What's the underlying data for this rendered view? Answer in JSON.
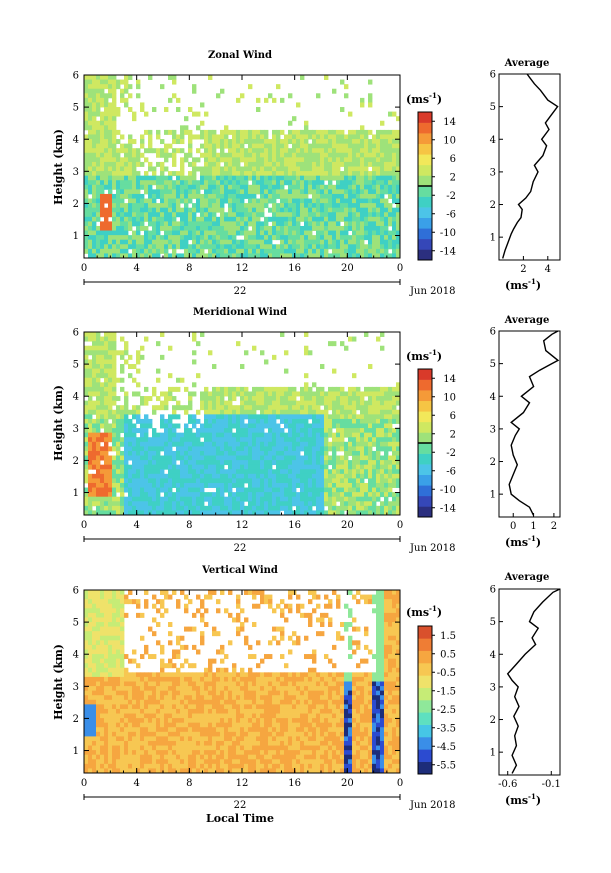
{
  "panels": [
    {
      "key": "zonal",
      "title": "Zonal Wind",
      "unit": "(ms",
      "unit_exp": "-1",
      "colorbar_ticks": [
        "14",
        "10",
        "6",
        "2",
        "-2",
        "-6",
        "-10",
        "-14"
      ],
      "colorbar_range": [
        -16,
        16
      ],
      "palette": "diverging",
      "time_labels": [
        "0",
        "4",
        "8",
        "12",
        "16",
        "20",
        "0"
      ],
      "date_day": "22",
      "date_month": "Jun 2018",
      "ylabel": "Height (km)",
      "y_ticks": [
        "1",
        "2",
        "3",
        "4",
        "5",
        "6"
      ],
      "average_title": "Average",
      "average_xticks": [
        "2",
        "4"
      ],
      "average_xrange": [
        0,
        5
      ],
      "average_yticks": [
        "1",
        "2",
        "3",
        "4",
        "5",
        "6"
      ],
      "average_unit": "(ms",
      "average_profile": [
        [
          0.3,
          0.35
        ],
        [
          0.5,
          0.6
        ],
        [
          0.8,
          0.9
        ],
        [
          1.0,
          1.1
        ],
        [
          1.2,
          1.25
        ],
        [
          1.5,
          1.45
        ],
        [
          1.8,
          1.6
        ],
        [
          1.9,
          1.85
        ],
        [
          1.6,
          2.0
        ],
        [
          2.2,
          2.2
        ],
        [
          2.6,
          2.4
        ],
        [
          2.8,
          2.7
        ],
        [
          3.2,
          3.0
        ],
        [
          2.9,
          3.2
        ],
        [
          3.6,
          3.5
        ],
        [
          3.9,
          3.8
        ],
        [
          3.5,
          4.0
        ],
        [
          4.1,
          4.3
        ],
        [
          3.8,
          4.5
        ],
        [
          4.2,
          4.7
        ],
        [
          4.8,
          5.0
        ],
        [
          4.0,
          5.2
        ],
        [
          3.4,
          5.5
        ],
        [
          2.9,
          5.7
        ],
        [
          2.5,
          5.9
        ],
        [
          2.3,
          6.0
        ]
      ]
    },
    {
      "key": "meridional",
      "title": "Meridional Wind",
      "unit": "(ms",
      "unit_exp": "-1",
      "colorbar_ticks": [
        "14",
        "10",
        "6",
        "2",
        "-2",
        "-6",
        "-10",
        "-14"
      ],
      "colorbar_range": [
        -16,
        16
      ],
      "palette": "diverging",
      "time_labels": [
        "0",
        "4",
        "8",
        "12",
        "16",
        "20",
        "0"
      ],
      "date_day": "22",
      "date_month": "Jun 2018",
      "ylabel": "Height (km)",
      "y_ticks": [
        "1",
        "2",
        "3",
        "4",
        "5",
        "6"
      ],
      "average_title": "Average",
      "average_xticks": [
        "0",
        "1",
        "2"
      ],
      "average_xrange": [
        -0.7,
        2.3
      ],
      "average_yticks": [
        "1",
        "2",
        "3",
        "4",
        "5",
        "6"
      ],
      "average_unit": "(ms",
      "average_profile": [
        [
          1.0,
          0.35
        ],
        [
          0.8,
          0.6
        ],
        [
          0.3,
          0.8
        ],
        [
          -0.1,
          1.0
        ],
        [
          -0.2,
          1.3
        ],
        [
          0.0,
          1.6
        ],
        [
          0.2,
          1.9
        ],
        [
          0.0,
          2.2
        ],
        [
          -0.1,
          2.5
        ],
        [
          0.1,
          2.8
        ],
        [
          0.3,
          3.0
        ],
        [
          -0.1,
          3.2
        ],
        [
          0.5,
          3.5
        ],
        [
          0.8,
          3.8
        ],
        [
          0.4,
          4.0
        ],
        [
          1.0,
          4.3
        ],
        [
          0.8,
          4.6
        ],
        [
          1.3,
          4.8
        ],
        [
          1.9,
          5.0
        ],
        [
          2.2,
          5.1
        ],
        [
          1.6,
          5.4
        ],
        [
          1.5,
          5.7
        ],
        [
          1.9,
          5.9
        ],
        [
          2.2,
          6.0
        ]
      ]
    },
    {
      "key": "vertical",
      "title": "Vertical Wind",
      "unit": "(ms",
      "unit_exp": "-1",
      "colorbar_ticks": [
        "1.5",
        "0.5",
        "-0.5",
        "-1.5",
        "-2.5",
        "-3.5",
        "-4.5",
        "-5.5"
      ],
      "colorbar_range": [
        -6,
        2
      ],
      "palette": "rainbow",
      "time_labels": [
        "0",
        "4",
        "8",
        "12",
        "16",
        "20",
        "0"
      ],
      "date_day": "22",
      "date_month": "Jun 2018",
      "ylabel": "Height (km)",
      "y_ticks": [
        "1",
        "2",
        "3",
        "4",
        "5",
        "6"
      ],
      "average_title": "Average",
      "average_xticks": [
        "-0.6",
        "-0.1"
      ],
      "average_xrange": [
        -0.7,
        0.0
      ],
      "average_yticks": [
        "1",
        "2",
        "3",
        "4",
        "5",
        "6"
      ],
      "average_unit": "(ms",
      "average_profile": [
        [
          -0.55,
          0.35
        ],
        [
          -0.5,
          0.6
        ],
        [
          -0.55,
          0.9
        ],
        [
          -0.5,
          1.2
        ],
        [
          -0.52,
          1.5
        ],
        [
          -0.48,
          1.8
        ],
        [
          -0.53,
          2.1
        ],
        [
          -0.47,
          2.4
        ],
        [
          -0.52,
          2.7
        ],
        [
          -0.48,
          3.0
        ],
        [
          -0.55,
          3.2
        ],
        [
          -0.6,
          3.4
        ],
        [
          -0.5,
          3.7
        ],
        [
          -0.4,
          4.0
        ],
        [
          -0.28,
          4.3
        ],
        [
          -0.32,
          4.5
        ],
        [
          -0.25,
          4.8
        ],
        [
          -0.35,
          5.0
        ],
        [
          -0.3,
          5.3
        ],
        [
          -0.2,
          5.6
        ],
        [
          -0.08,
          5.9
        ],
        [
          0.0,
          6.0
        ]
      ]
    }
  ],
  "xlabel": "Local Time"
}
